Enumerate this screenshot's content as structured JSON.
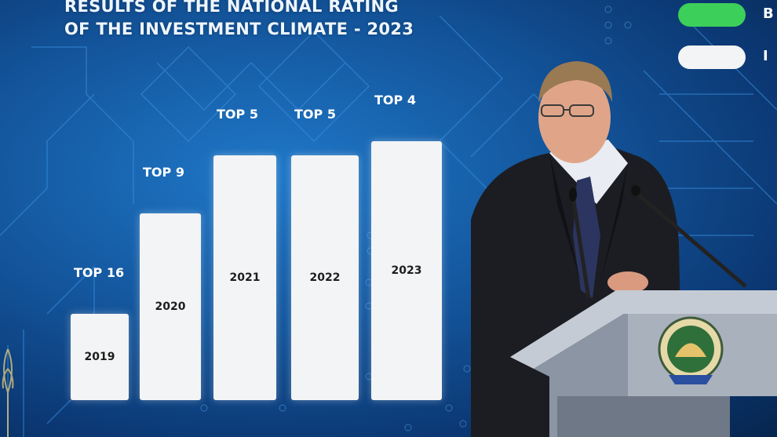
{
  "screen": {
    "title": "RESULTS OF THE NATIONAL RATING\nOF THE INVESTMENT CLIMATE - 2023",
    "legend": [
      {
        "label": "В",
        "color": "#3ccf5a"
      },
      {
        "label": "I",
        "color": "#f2f4f6"
      }
    ]
  },
  "chart_data": {
    "type": "bar",
    "categories": [
      "2019",
      "2020",
      "2021",
      "2022",
      "2023"
    ],
    "rank_labels": [
      "TOP 16",
      "TOP 9",
      "TOP 5",
      "TOP 5",
      "TOP 4"
    ],
    "values": [
      16,
      9,
      5,
      5,
      4
    ]
  },
  "colors": {
    "screen_blue": "#14579e",
    "bar_white": "#f3f4f5",
    "suit": "#1c1d22",
    "podium": "#8c95a3"
  }
}
